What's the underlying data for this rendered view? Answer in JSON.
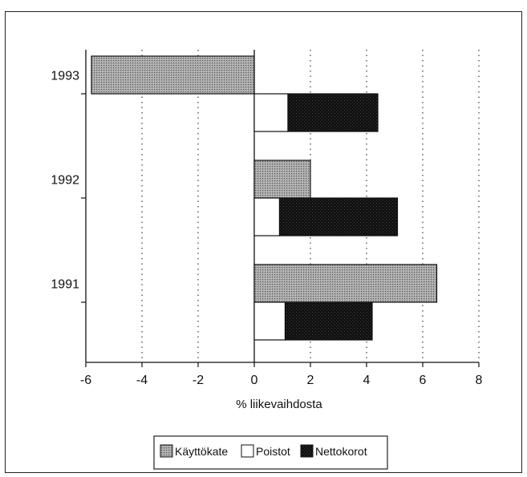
{
  "chart_data": {
    "type": "bar",
    "orientation": "horizontal",
    "categories": [
      "1993",
      "1992",
      "1991"
    ],
    "series": [
      {
        "name": "Käyttökate",
        "values": [
          -5.8,
          2.0,
          6.5
        ],
        "pattern": "light-gray-dotted"
      },
      {
        "name": "Poistot",
        "values": [
          1.2,
          0.9,
          1.1
        ],
        "pattern": "white"
      },
      {
        "name": "Nettokorot",
        "values": [
          3.2,
          4.2,
          3.1
        ],
        "pattern": "black-dotted",
        "stacked_on": "Poistot"
      }
    ],
    "xlabel": "% liikevaihdosta",
    "xlim": [
      -6,
      8
    ],
    "xticks": [
      "-6",
      "-4",
      "-2",
      "0",
      "2",
      "4",
      "6",
      "8"
    ],
    "grid": "vertical dotted",
    "legend_position": "bottom"
  },
  "colors": {
    "kayttokate_fill": "#9e9e9e",
    "poistot_fill": "#ffffff",
    "nettokorot_fill": "#111111",
    "axis": "#111111"
  }
}
